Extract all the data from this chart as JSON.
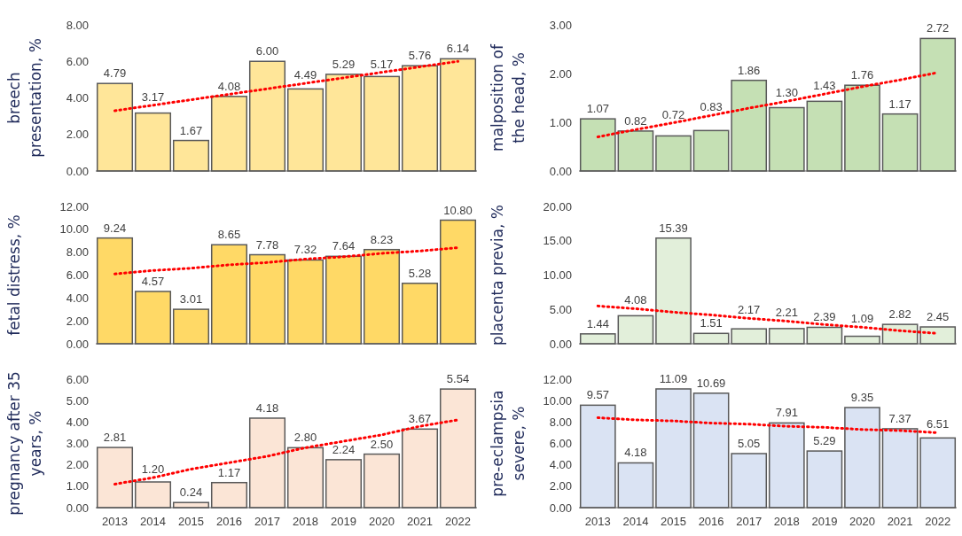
{
  "chart_data": [
    {
      "type": "bar",
      "ylabel": "breech\npresentation, %",
      "categories": [
        null,
        null,
        null,
        null,
        null,
        null,
        null,
        null,
        null,
        null
      ],
      "ylim": [
        0,
        8
      ],
      "yticks": [
        {
          "value": 0,
          "label": "0.00"
        },
        {
          "value": 2,
          "label": "2.00"
        },
        {
          "value": 4,
          "label": "4.00"
        },
        {
          "value": 6,
          "label": "6.00"
        },
        {
          "value": 8,
          "label": "8.00"
        }
      ],
      "series": [
        {
          "color": "#ffe699",
          "values": [
            4.79,
            3.17,
            1.67,
            4.08,
            6.0,
            4.49,
            5.29,
            5.17,
            5.76,
            6.14
          ],
          "value_labels": [
            "4.79",
            "3.17",
            "1.67",
            "4.08",
            "6.00",
            "4.49",
            "5.29",
            "5.17",
            "5.76",
            "6.14"
          ]
        },
        {
          "type": "line",
          "color": "#ff0000",
          "line_style": "dotted",
          "values": [
            3.3,
            3.6,
            3.9,
            4.2,
            4.5,
            4.8,
            5.1,
            5.4,
            5.7,
            6.0
          ]
        }
      ]
    },
    {
      "type": "bar",
      "ylabel": "malposition of\nthe head, %",
      "categories": [
        null,
        null,
        null,
        null,
        null,
        null,
        null,
        null,
        null,
        null
      ],
      "ylim": [
        0,
        3
      ],
      "yticks": [
        {
          "value": 0,
          "label": "0.00"
        },
        {
          "value": 1,
          "label": "1.00"
        },
        {
          "value": 2,
          "label": "2.00"
        },
        {
          "value": 3,
          "label": "3.00"
        }
      ],
      "series": [
        {
          "color": "#c5e0b4",
          "values": [
            1.07,
            0.82,
            0.72,
            0.83,
            1.86,
            1.3,
            1.43,
            1.76,
            1.17,
            2.72
          ],
          "value_labels": [
            "1.07",
            "0.82",
            "0.72",
            "0.83",
            "1.86",
            "1.30",
            "1.43",
            "1.76",
            "1.17",
            "2.72"
          ]
        },
        {
          "type": "line",
          "color": "#ff0000",
          "line_style": "dotted",
          "values": [
            0.7,
            0.85,
            0.99,
            1.14,
            1.29,
            1.43,
            1.58,
            1.73,
            1.87,
            2.02
          ]
        }
      ]
    },
    {
      "type": "bar",
      "ylabel": "fetal distress, %",
      "categories": [
        null,
        null,
        null,
        null,
        null,
        null,
        null,
        null,
        null,
        null
      ],
      "ylim": [
        0,
        12
      ],
      "yticks": [
        {
          "value": 0,
          "label": "0.00"
        },
        {
          "value": 2,
          "label": "2.00"
        },
        {
          "value": 4,
          "label": "4.00"
        },
        {
          "value": 6,
          "label": "6.00"
        },
        {
          "value": 8,
          "label": "8.00"
        },
        {
          "value": 10,
          "label": "10.00"
        },
        {
          "value": 12,
          "label": "12.00"
        }
      ],
      "series": [
        {
          "color": "#ffd966",
          "values": [
            9.24,
            4.57,
            3.01,
            8.65,
            7.78,
            7.32,
            7.64,
            8.23,
            5.28,
            10.8
          ],
          "value_labels": [
            "9.24",
            "4.57",
            "3.01",
            "8.65",
            "7.78",
            "7.32",
            "7.64",
            "8.23",
            "5.28",
            "10.80"
          ]
        },
        {
          "type": "line",
          "color": "#ff0000",
          "line_style": "dotted",
          "values": [
            6.1,
            6.4,
            6.6,
            6.9,
            7.1,
            7.4,
            7.6,
            7.9,
            8.1,
            8.4
          ]
        }
      ]
    },
    {
      "type": "bar",
      "ylabel": "placenta previa, %",
      "categories": [
        null,
        null,
        null,
        null,
        null,
        null,
        null,
        null,
        null,
        null
      ],
      "ylim": [
        0,
        20
      ],
      "yticks": [
        {
          "value": 0,
          "label": "0.00"
        },
        {
          "value": 5,
          "label": "5.00"
        },
        {
          "value": 10,
          "label": "10.00"
        },
        {
          "value": 15,
          "label": "15.00"
        },
        {
          "value": 20,
          "label": "20.00"
        }
      ],
      "series": [
        {
          "color": "#e2efda",
          "values": [
            1.44,
            4.08,
            15.39,
            1.51,
            2.17,
            2.21,
            2.39,
            1.09,
            2.82,
            2.45
          ],
          "value_labels": [
            "1.44",
            "4.08",
            "15.39",
            "1.51",
            "2.17",
            "2.21",
            "2.39",
            "1.09",
            "2.82",
            "2.45"
          ]
        },
        {
          "type": "line",
          "color": "#ff0000",
          "line_style": "dotted",
          "values": [
            5.5,
            5.1,
            4.6,
            4.2,
            3.7,
            3.3,
            2.8,
            2.4,
            1.9,
            1.5
          ]
        }
      ]
    },
    {
      "type": "bar",
      "ylabel": "pregnancy after 35\nyears, %",
      "categories": [
        "2013",
        "2014",
        "2015",
        "2016",
        "2017",
        "2018",
        "2019",
        "2020",
        "2021",
        "2022"
      ],
      "ylim": [
        0,
        6
      ],
      "yticks": [
        {
          "value": 0,
          "label": "0.00"
        },
        {
          "value": 1,
          "label": "1.00"
        },
        {
          "value": 2,
          "label": "2.00"
        },
        {
          "value": 3,
          "label": "3.00"
        },
        {
          "value": 4,
          "label": "4.00"
        },
        {
          "value": 5,
          "label": "5.00"
        },
        {
          "value": 6,
          "label": "6.00"
        }
      ],
      "series": [
        {
          "color": "#fbe5d6",
          "values": [
            2.81,
            1.2,
            0.24,
            1.17,
            4.18,
            2.8,
            2.24,
            2.5,
            3.67,
            5.54
          ],
          "value_labels": [
            "2.81",
            "1.20",
            "0.24",
            "1.17",
            "4.18",
            "2.80",
            "2.24",
            "2.50",
            "3.67",
            "5.54"
          ]
        },
        {
          "type": "line",
          "color": "#ff0000",
          "line_style": "dotted",
          "values": [
            1.1,
            1.4,
            1.8,
            2.1,
            2.4,
            2.8,
            3.1,
            3.4,
            3.8,
            4.1
          ]
        }
      ]
    },
    {
      "type": "bar",
      "ylabel": "pre-eclampsia\nsevere, %",
      "categories": [
        "2013",
        "2014",
        "2015",
        "2016",
        "2017",
        "2018",
        "2019",
        "2020",
        "2021",
        "2022"
      ],
      "ylim": [
        0,
        12
      ],
      "yticks": [
        {
          "value": 0,
          "label": "0.00"
        },
        {
          "value": 2,
          "label": "2.00"
        },
        {
          "value": 4,
          "label": "4.00"
        },
        {
          "value": 6,
          "label": "6.00"
        },
        {
          "value": 8,
          "label": "8.00"
        },
        {
          "value": 10,
          "label": "10.00"
        },
        {
          "value": 12,
          "label": "12.00"
        }
      ],
      "series": [
        {
          "color": "#dae3f3",
          "values": [
            9.57,
            4.18,
            11.09,
            10.69,
            5.05,
            7.91,
            5.29,
            9.35,
            7.37,
            6.51
          ],
          "value_labels": [
            "9.57",
            "4.18",
            "11.09",
            "10.69",
            "5.05",
            "7.91",
            "5.29",
            "9.35",
            "7.37",
            "6.51"
          ]
        },
        {
          "type": "line",
          "color": "#ff0000",
          "line_style": "dotted",
          "values": [
            8.4,
            8.2,
            8.1,
            7.9,
            7.8,
            7.6,
            7.5,
            7.3,
            7.2,
            7.0
          ]
        }
      ]
    }
  ]
}
